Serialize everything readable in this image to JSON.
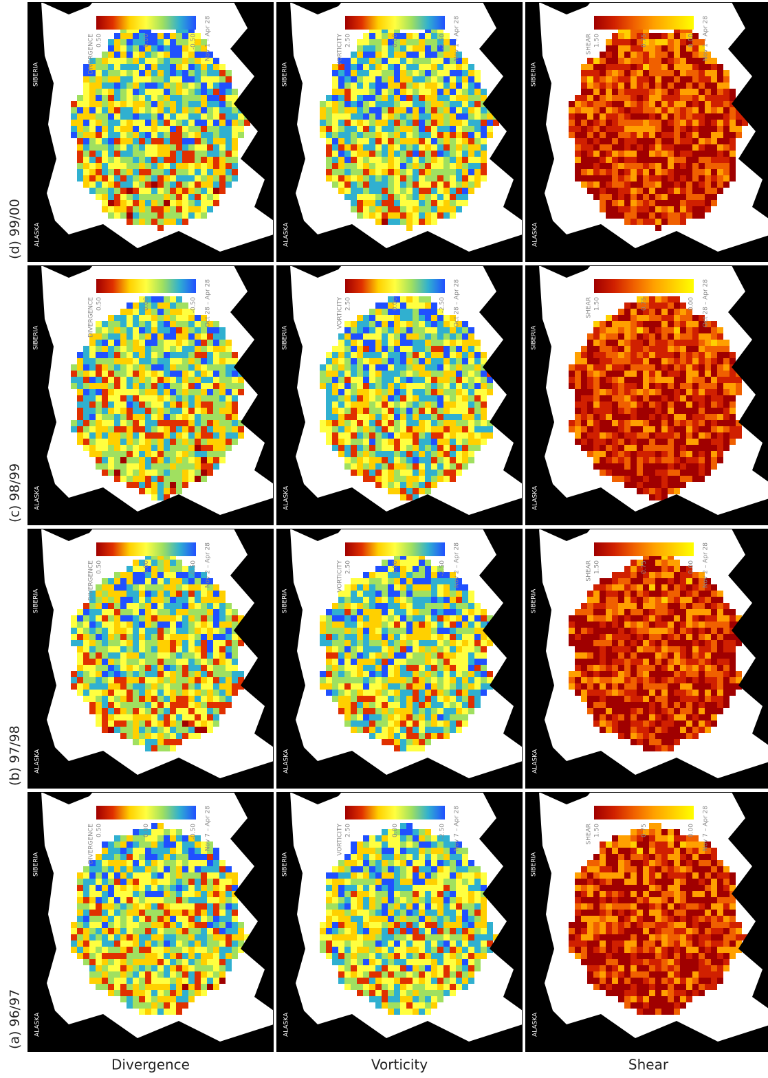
{
  "column_headers": [
    "(a) 96/97",
    "(b) 97/98",
    "(c) 98/99",
    "(d) 99/00"
  ],
  "date_ranges": [
    "Nov 7 – Apr 28",
    "Nov 2 – Apr 28",
    "Oct 28 – Apr 28",
    "Nov 1 – Apr 28"
  ],
  "region_labels": [
    "ALASKA",
    "SIBERIA"
  ],
  "rows": [
    {
      "label": "Divergence",
      "colorbar_title": "DIVERGENCE",
      "colorbar_labels": [
        "0.50",
        "0.00",
        "-0.50"
      ],
      "colormap": [
        "#a00000",
        "#e03000",
        "#ffd000",
        "#ffff40",
        "#a0e060",
        "#30b0d0",
        "#2050ff"
      ]
    },
    {
      "label": "Vorticity",
      "colorbar_title": "VORTICITY",
      "colorbar_labels": [
        "2.50",
        "0.00",
        "-2.50"
      ],
      "colormap": [
        "#a00000",
        "#e03000",
        "#ffd000",
        "#ffff40",
        "#a0e060",
        "#30b0d0",
        "#2050ff"
      ]
    },
    {
      "label": "Shear",
      "colorbar_title": "SHEAR",
      "colorbar_labels": [
        "1.50",
        "0.75",
        "0.00"
      ],
      "colormap": [
        "#a00000",
        "#d02000",
        "#f06000",
        "#ffa000",
        "#ffd000",
        "#ffff00"
      ]
    }
  ]
}
